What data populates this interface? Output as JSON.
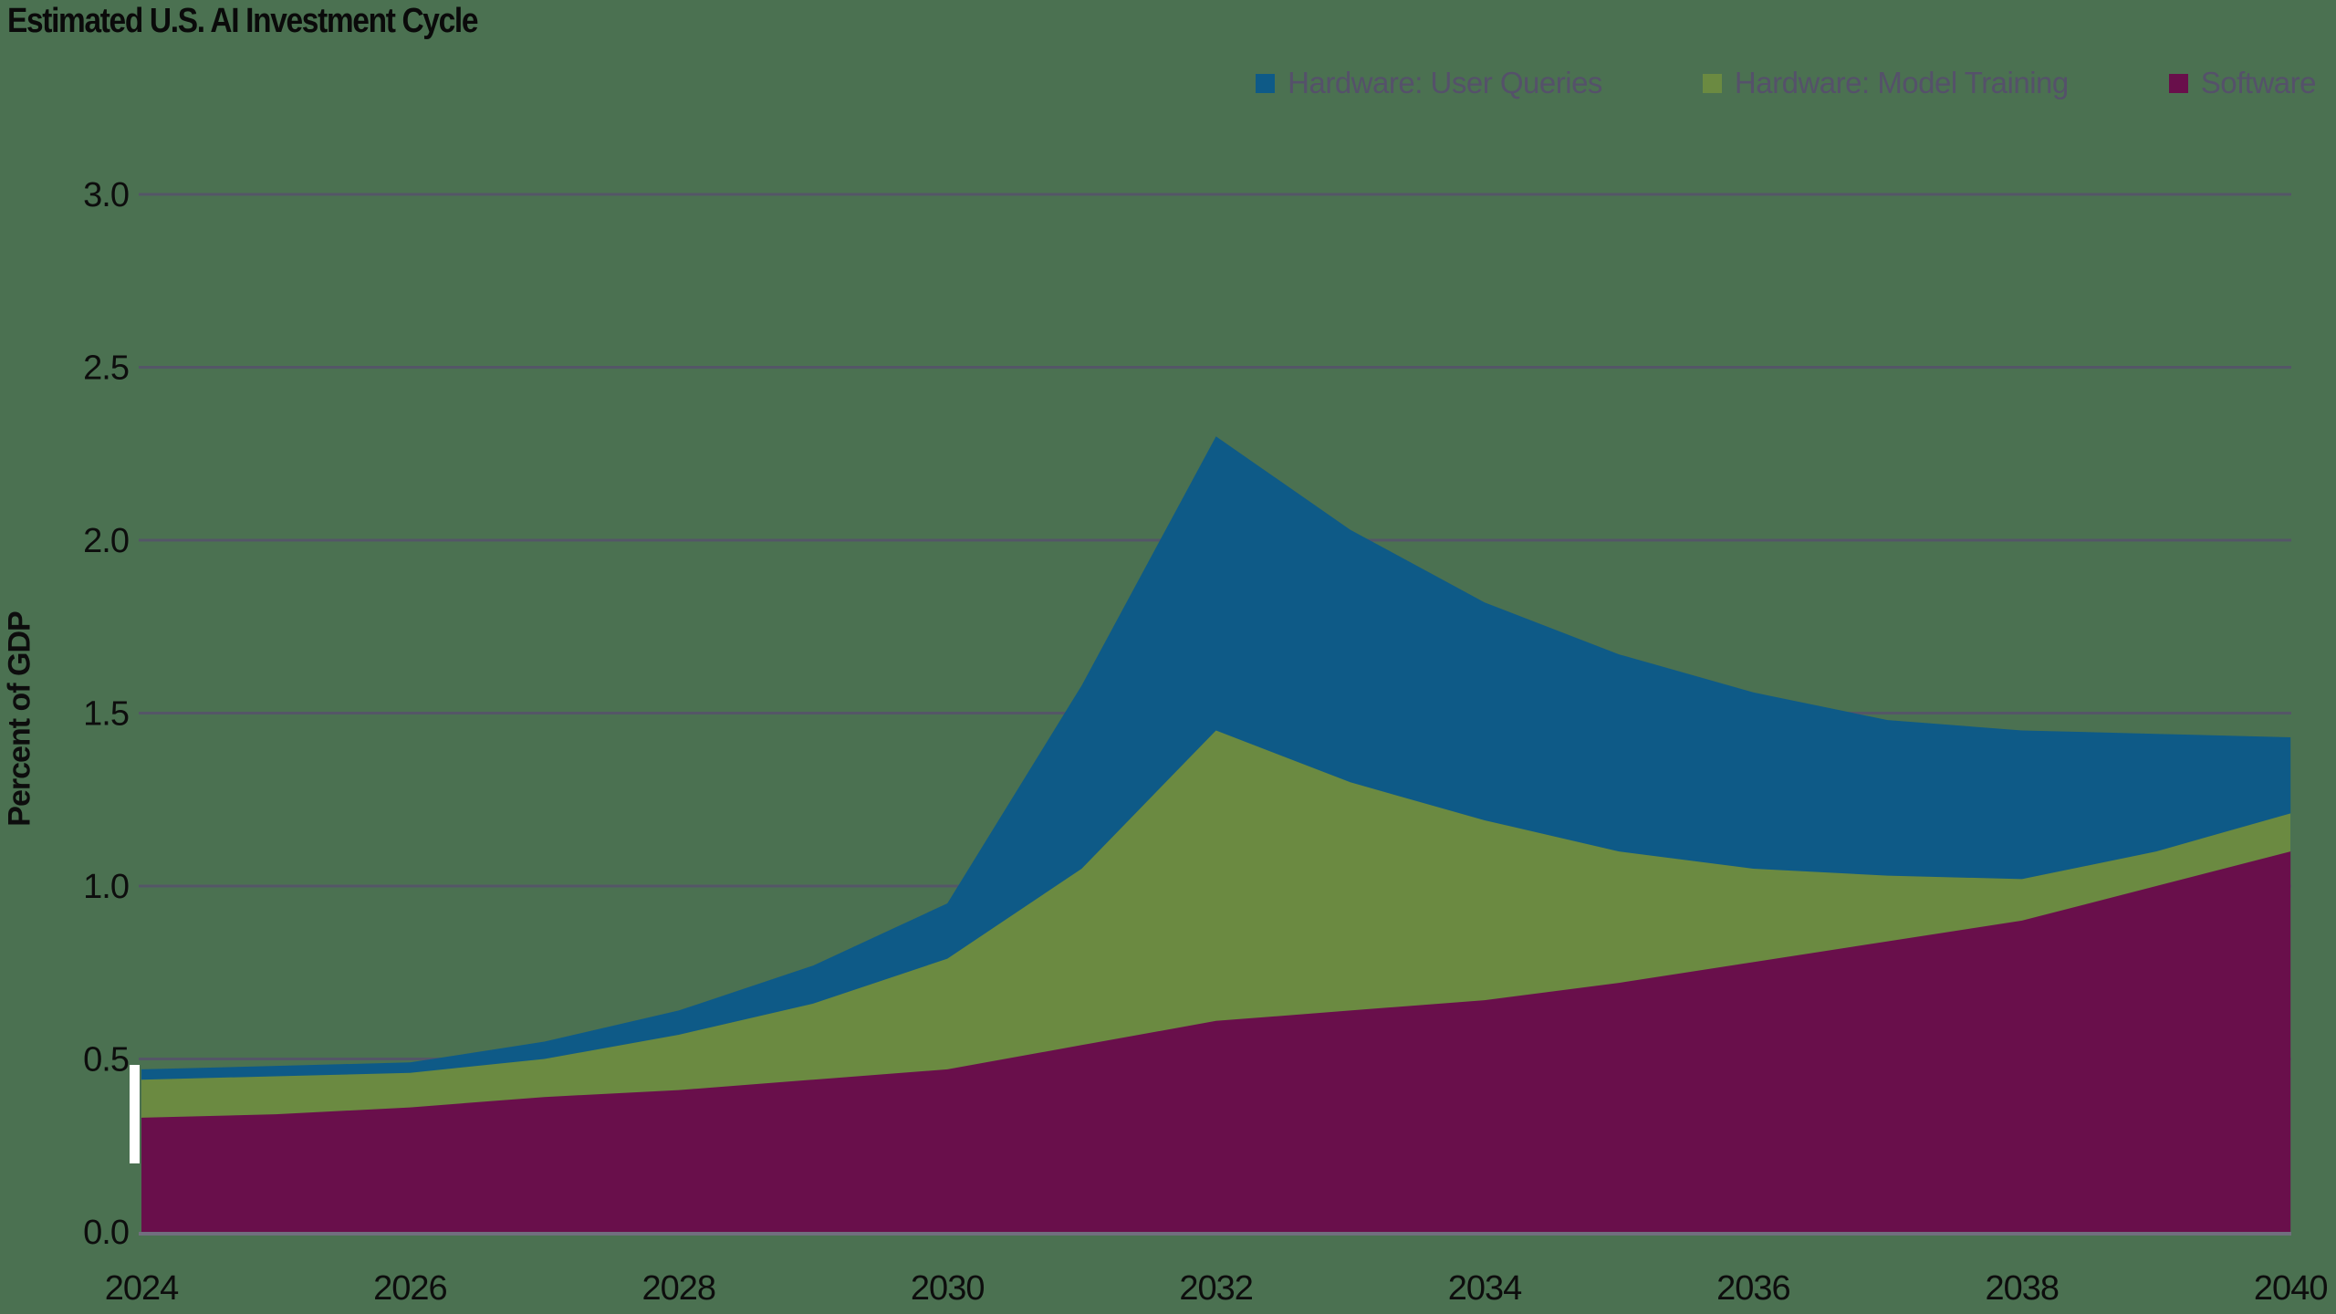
{
  "title": "Estimated U.S. AI Investment Cycle",
  "chart_data": {
    "type": "area",
    "stacked": true,
    "title": "Estimated U.S. AI Investment Cycle",
    "xlabel": "",
    "ylabel": "Percent of GDP",
    "ylim": [
      0.0,
      3.0
    ],
    "grid": true,
    "x": [
      2024,
      2025,
      2026,
      2027,
      2028,
      2029,
      2030,
      2031,
      2032,
      2033,
      2034,
      2035,
      2036,
      2037,
      2038,
      2039,
      2040
    ],
    "x_tick_labels": [
      "2024",
      "2026",
      "2028",
      "2030",
      "2032",
      "2034",
      "2036",
      "2038",
      "2040"
    ],
    "y_tick_labels": [
      "0.0",
      "0.5",
      "1.0",
      "1.5",
      "2.0",
      "2.5",
      "3.0"
    ],
    "series": [
      {
        "name": "Software",
        "color": "#690F4B",
        "values": [
          0.33,
          0.34,
          0.36,
          0.39,
          0.41,
          0.44,
          0.47,
          0.54,
          0.61,
          0.64,
          0.67,
          0.72,
          0.78,
          0.84,
          0.9,
          1.0,
          1.1
        ]
      },
      {
        "name": "Hardware: Model Training",
        "color": "#6B8A41",
        "values": [
          0.11,
          0.11,
          0.1,
          0.11,
          0.16,
          0.22,
          0.32,
          0.51,
          0.84,
          0.66,
          0.52,
          0.38,
          0.27,
          0.19,
          0.12,
          0.1,
          0.11
        ]
      },
      {
        "name": "Hardware: User Queries",
        "color": "#0E5A87",
        "values": [
          0.03,
          0.03,
          0.03,
          0.05,
          0.07,
          0.11,
          0.16,
          0.53,
          0.85,
          0.73,
          0.63,
          0.57,
          0.51,
          0.45,
          0.43,
          0.34,
          0.22
        ]
      }
    ],
    "legend": {
      "position": "top-right",
      "items": [
        {
          "label": "Hardware: User Queries",
          "color": "#0E5A87"
        },
        {
          "label": "Hardware: Model Training",
          "color": "#6B8A41"
        },
        {
          "label": "Software",
          "color": "#690F4B"
        }
      ]
    },
    "colors": {
      "background": "#4B7151",
      "gridline": "#56526B",
      "axis_line": "#716E7E",
      "tick_text": "#0D0D0D",
      "legend_text": "#55516A",
      "title_text": "#0A0A0A"
    }
  }
}
